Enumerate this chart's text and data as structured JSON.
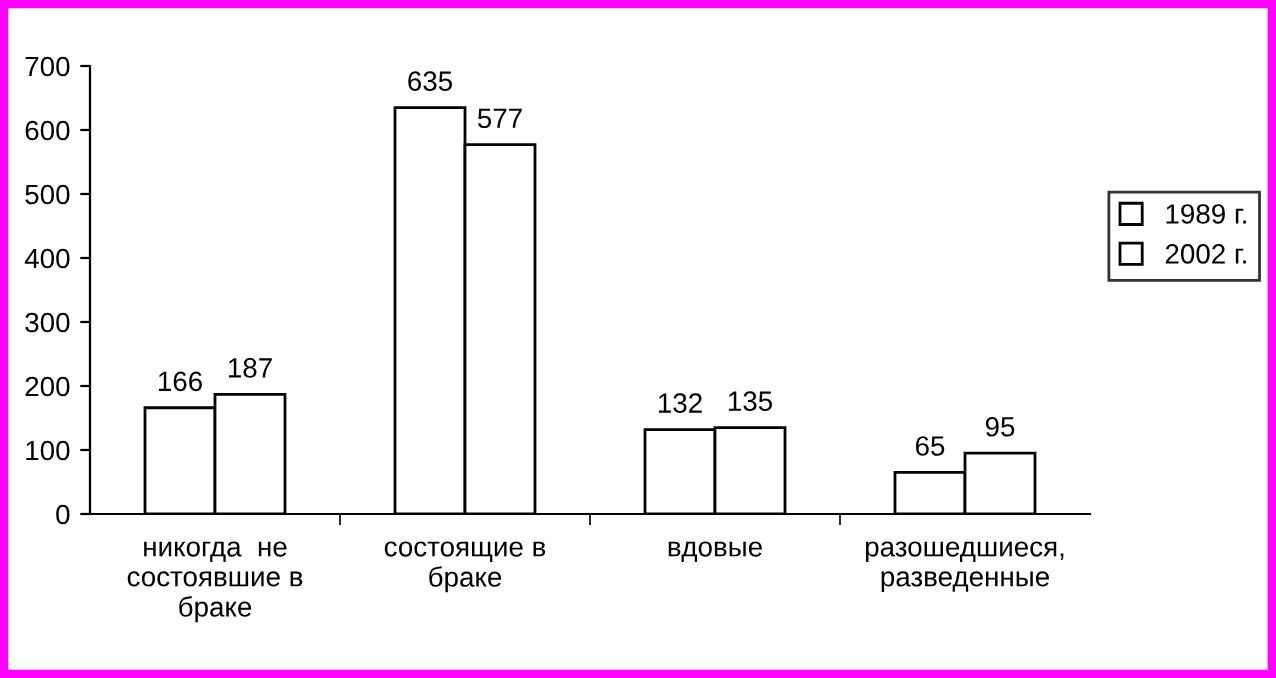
{
  "chart_data": {
    "type": "bar",
    "categories": [
      "никогда  не\nсостоявшие в\nбраке",
      "состоящие в\nбраке",
      "вдовые",
      "разошедшиеся,\nразведенные"
    ],
    "series": [
      {
        "name": "1989 г.",
        "color": "#ffffff",
        "values": [
          166,
          635,
          132,
          65
        ]
      },
      {
        "name": "2002 г.",
        "color": "#ffffff",
        "values": [
          187,
          577,
          135,
          95
        ]
      }
    ],
    "ylim": [
      0,
      700
    ],
    "yticks": [
      0,
      100,
      200,
      300,
      400,
      500,
      600,
      700
    ],
    "data_labels": true,
    "grid": false,
    "legend": "right"
  }
}
